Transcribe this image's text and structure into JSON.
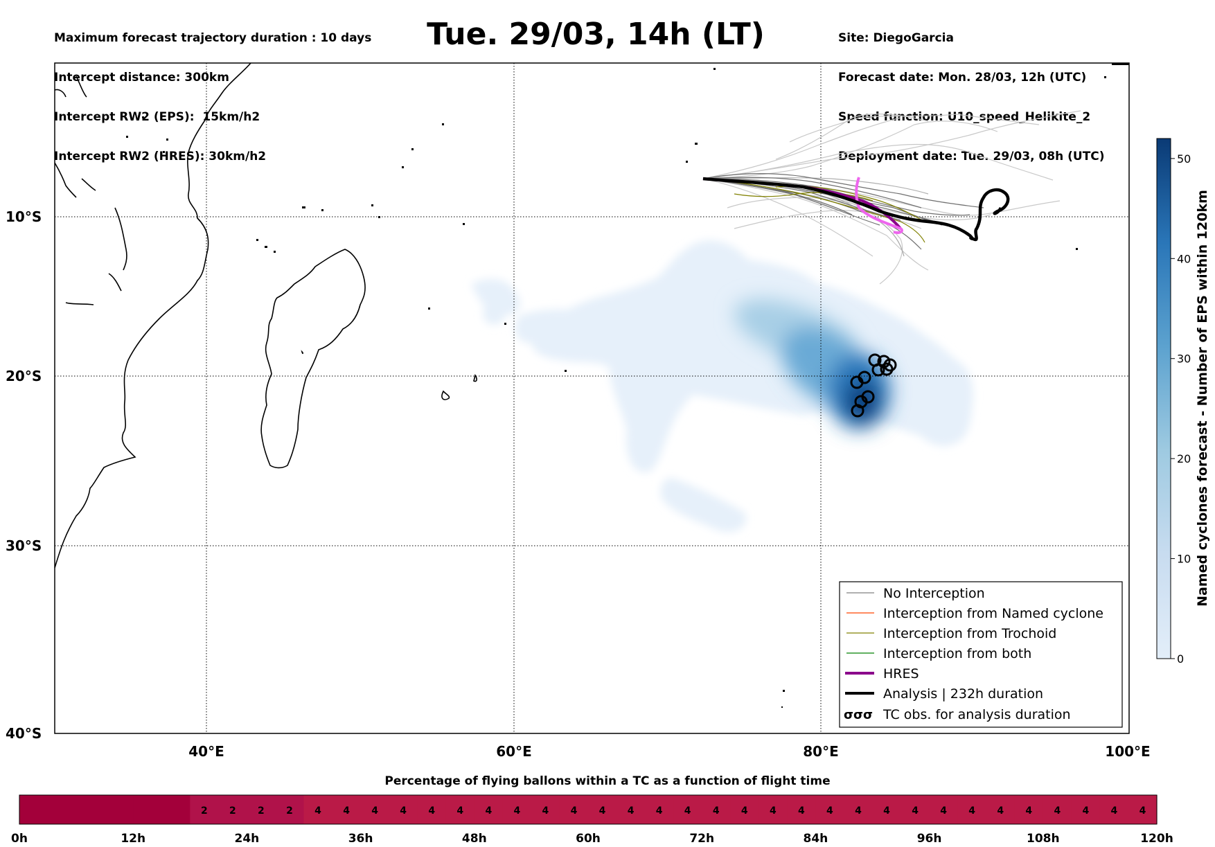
{
  "header_left": [
    "Maximum forecast trajectory duration : 10 days",
    "Intercept distance: 300km",
    "Intercept RW2 (EPS):  15km/h2",
    "Intercept RW2 (HRES): 30km/h2"
  ],
  "header_right": [
    "Site: DiegoGarcia",
    "Forecast date: Mon. 28/03, 12h (UTC)",
    "Speed function: U10_speed_Helikite_2",
    "Deployment date: Tue. 29/03, 08h (UTC)"
  ],
  "title": "Tue. 29/03, 14h (LT)",
  "map": {
    "lat_labels": [
      "10°S",
      "20°S",
      "30°S",
      "40°S"
    ],
    "lon_labels": [
      "40°E",
      "60°E",
      "80°E",
      "100°E"
    ],
    "lon_range": [
      30,
      100
    ],
    "lat_range": [
      -40,
      0
    ],
    "grid": "dotted"
  },
  "legend": {
    "placement": "lower-right",
    "entries": [
      {
        "label": "No Interception",
        "color": "#808080"
      },
      {
        "label": "Interception from Named cyclone",
        "color": "#ff4500"
      },
      {
        "label": "Interception from Trochoid",
        "color": "#808000"
      },
      {
        "label": "Interception from both",
        "color": "#008000"
      },
      {
        "label": "HRES",
        "color": "#8b008b"
      },
      {
        "label": "Analysis | 232h duration",
        "color": "#000000"
      },
      {
        "label": "TC obs. for analysis duration",
        "color": "#000000",
        "symbol": "σσσ"
      }
    ]
  },
  "colorbar_right": {
    "label": "Named cyclones forecast - Number of EPS within 120km",
    "ticks": [
      "0",
      "10",
      "20",
      "30",
      "40",
      "50"
    ],
    "colors": [
      "#e3eef9",
      "#c8dcf0",
      "#9ecae1",
      "#5ca2cf",
      "#2a76b8",
      "#0a3a75"
    ]
  },
  "bottom_bar": {
    "title": "Percentage of flying ballons within a TC as a function of flight time",
    "time_labels": [
      "0h",
      "12h",
      "24h",
      "36h",
      "48h",
      "60h",
      "72h",
      "84h",
      "96h",
      "108h",
      "120h"
    ],
    "values": [
      0,
      0,
      0,
      0,
      0,
      0,
      2,
      2,
      2,
      2,
      4,
      4,
      4,
      4,
      4,
      4,
      4,
      4,
      4,
      4,
      4,
      4,
      4,
      4,
      4,
      4,
      4,
      4,
      4,
      4,
      4,
      4,
      4,
      4,
      4,
      4,
      4,
      4,
      4,
      4
    ],
    "color_zero": "#a3003a",
    "color_two": "#b0124a",
    "color_four": "#ba1a47"
  }
}
